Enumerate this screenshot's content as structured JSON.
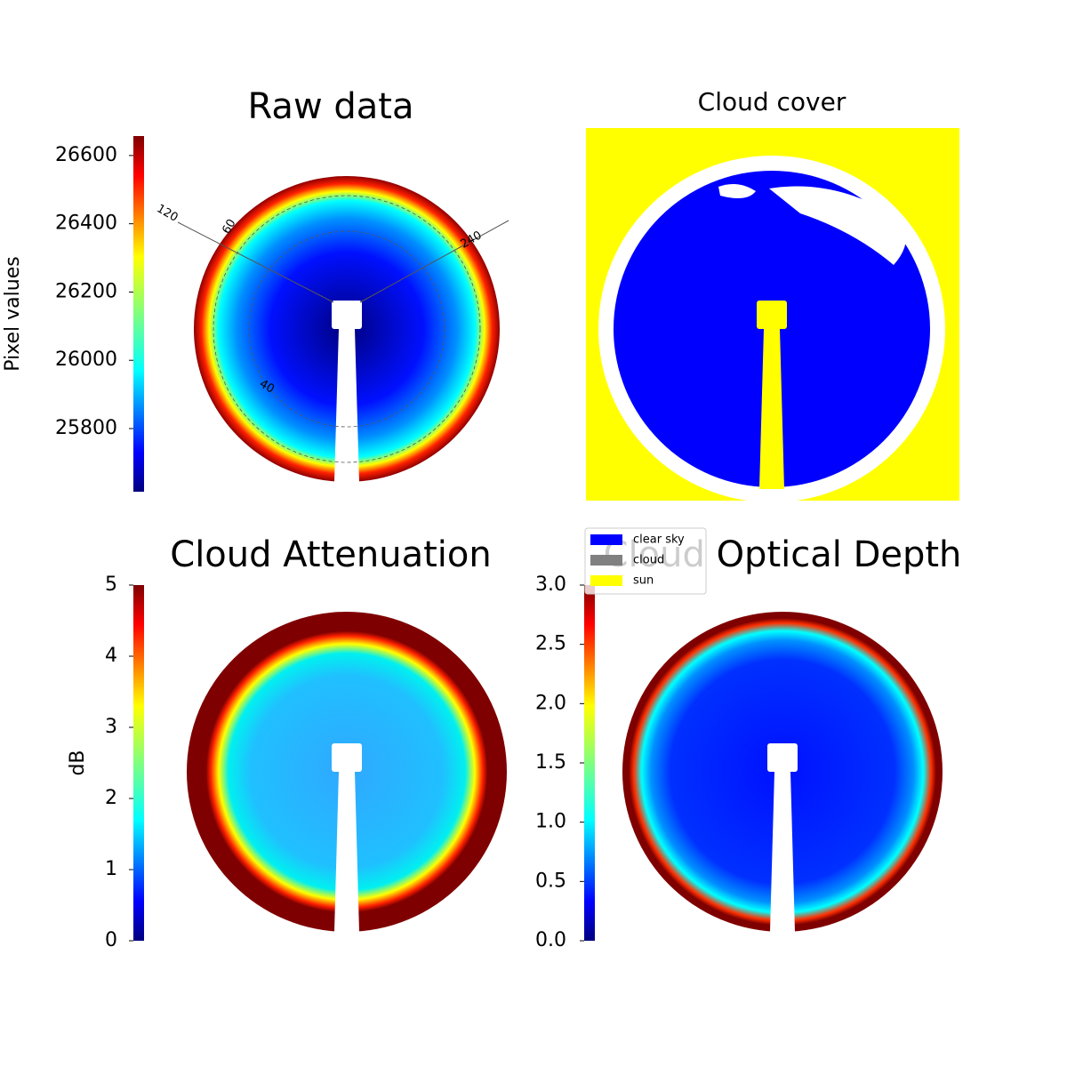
{
  "chart_data": [
    {
      "type": "image",
      "title": "Raw data",
      "ylabel": "Pixel values",
      "ylim": [
        25615,
        26657
      ],
      "yticks": [
        25800,
        26000,
        26200,
        26400,
        26600
      ],
      "annotations": [
        "120",
        "60",
        "240",
        "40"
      ]
    },
    {
      "type": "mask",
      "title": "Cloud cover",
      "series": [
        {
          "name": "clear sky",
          "color": "#0000ff"
        },
        {
          "name": "cloud",
          "color": "#808080"
        },
        {
          "name": "sun",
          "color": "#ffff00"
        }
      ]
    },
    {
      "type": "image",
      "title": "Cloud Attenuation",
      "ylabel": "dB",
      "ylim": [
        0,
        5
      ],
      "yticks": [
        0,
        1,
        2,
        3,
        4,
        5
      ]
    },
    {
      "type": "image",
      "title": "Cloud Optical Depth",
      "ylim": [
        0,
        3
      ],
      "yticks": [
        {
          "value": 0,
          "label": "0.0"
        },
        0.5,
        {
          "value": 1,
          "label": "1.0"
        },
        1.5,
        {
          "value": 2,
          "label": "2.0"
        },
        2.5,
        {
          "value": 3,
          "label": "3.0"
        }
      ]
    }
  ]
}
